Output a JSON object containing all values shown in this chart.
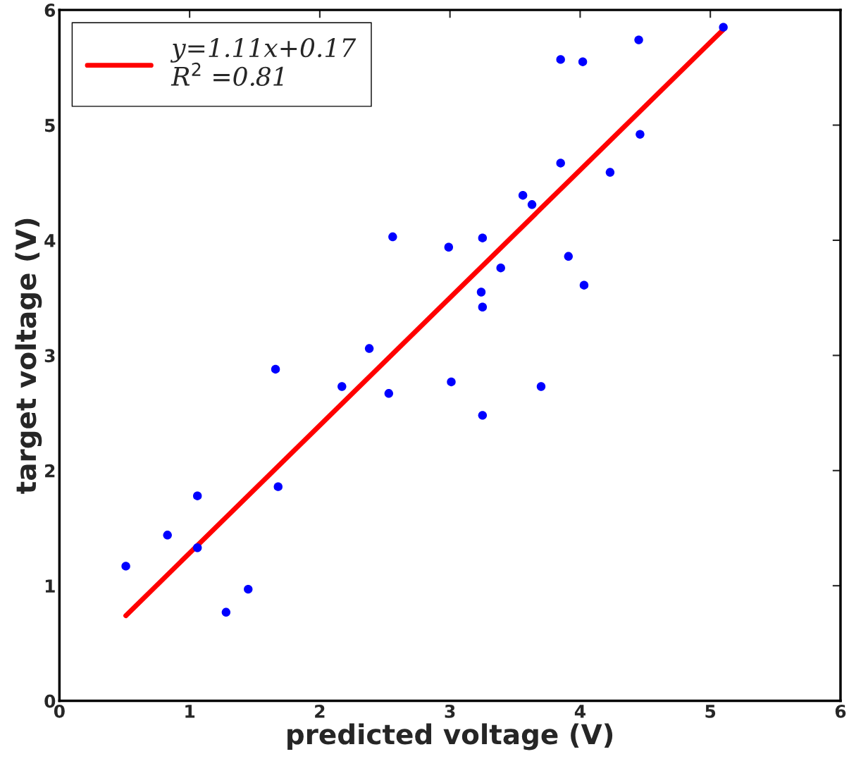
{
  "chart_data": {
    "type": "scatter",
    "xlabel": "predicted voltage (V)",
    "ylabel": "target voltage (V)",
    "xlim": [
      0,
      6
    ],
    "ylim": [
      0,
      6
    ],
    "xticks": [
      0,
      1,
      2,
      3,
      4,
      5,
      6
    ],
    "yticks": [
      0,
      1,
      2,
      3,
      4,
      5,
      6
    ],
    "grid": false,
    "legend": "top left",
    "series": [
      {
        "marker": "circle",
        "color": "#0000ff",
        "x": [
          0.51,
          0.83,
          1.06,
          1.06,
          1.28,
          1.45,
          1.66,
          1.68,
          2.17,
          2.38,
          2.53,
          2.56,
          2.99,
          3.01,
          3.24,
          3.25,
          3.25,
          3.25,
          3.39,
          3.56,
          3.63,
          3.7,
          3.85,
          3.85,
          3.91,
          4.02,
          4.03,
          4.23,
          4.45,
          4.46,
          5.1
        ],
        "values": [
          1.17,
          1.44,
          1.78,
          1.33,
          0.77,
          0.97,
          2.88,
          1.86,
          2.73,
          3.06,
          2.67,
          4.03,
          3.94,
          2.77,
          3.55,
          3.42,
          4.02,
          2.48,
          3.76,
          4.39,
          4.31,
          2.73,
          5.57,
          4.67,
          3.86,
          5.55,
          3.61,
          4.59,
          5.74,
          4.92,
          5.85
        ]
      },
      {
        "type": "line",
        "name": "y=1.11x+0.17\nR$^{2}$ =0.81",
        "color": "#ff0000",
        "line_style": "solid",
        "x": [
          0.51,
          5.1
        ],
        "values": [
          0.74,
          5.83
        ]
      }
    ]
  }
}
